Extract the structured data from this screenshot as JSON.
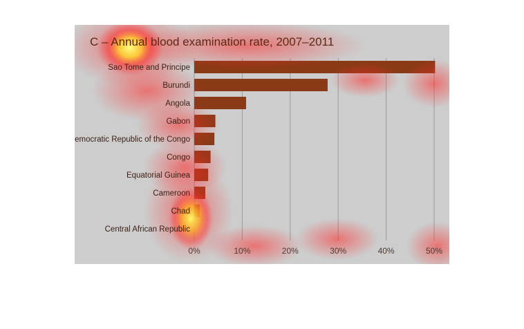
{
  "chart_data": {
    "type": "bar",
    "orientation": "horizontal",
    "title": "C – Annual blood examination rate, 2007–2011",
    "categories": [
      "Sao Tome and Principe",
      "Burundi",
      "Angola",
      "Gabon",
      "Democratic Republic of the Congo",
      "Congo",
      "Equatorial Guinea",
      "Cameroon",
      "Chad",
      "Central African Republic"
    ],
    "values": [
      50.2,
      27.8,
      10.8,
      4.4,
      4.2,
      3.4,
      2.9,
      2.3,
      1.1,
      0.0
    ],
    "xlim": [
      0,
      50
    ],
    "xticks": [
      "0%",
      "10%",
      "20%",
      "30%",
      "40%",
      "50%"
    ],
    "xtick_values": [
      0,
      10,
      20,
      30,
      40,
      50
    ],
    "grid": true,
    "colors": {
      "bar": "#8a3a17",
      "background": "#cdcdcd",
      "heatmap_hot": "#ffff66",
      "heatmap_warm": "#ff3a3a"
    }
  }
}
